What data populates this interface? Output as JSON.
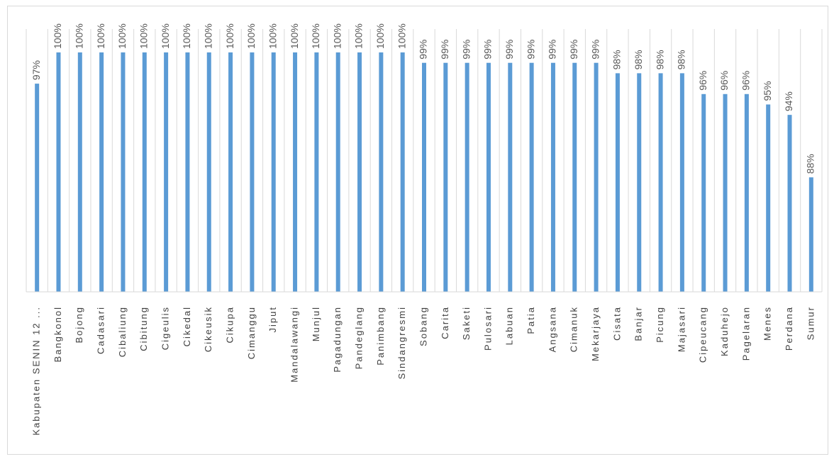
{
  "chart_data": {
    "type": "bar",
    "orientation": "vertical",
    "series": [
      {
        "values": [
          97,
          100,
          100,
          100,
          100,
          100,
          100,
          100,
          100,
          100,
          100,
          100,
          100,
          100,
          100,
          100,
          100,
          100,
          99,
          99,
          99,
          99,
          99,
          99,
          99,
          99,
          99,
          98,
          98,
          98,
          98,
          96,
          96,
          96,
          95,
          94,
          88
        ]
      }
    ],
    "categories": [
      "Kabupaten SENIN 12 ...",
      "Bangkonol",
      "Bojong",
      "Cadasari",
      "Cibaliung",
      "Cibitung",
      "Cigeulis",
      "Cikedal",
      "Cikeusik",
      "Cikupa",
      "Cimanggu",
      "Jiput",
      "Mandalawangi",
      "Munjul",
      "Pagadungan",
      "Pandeglang",
      "Panimbang",
      "Sindangresmi",
      "Sobang",
      "Carita",
      "Saketi",
      "Pulosari",
      "Labuan",
      "Patia",
      "Angsana",
      "Cimanuk",
      "Mekarjaya",
      "Cisata",
      "Banjar",
      "Picung",
      "Majasari",
      "Cipeucang",
      "Kaduhejo",
      "Pagelaran",
      "Menes",
      "Perdana",
      "Sumur"
    ],
    "data_labels": [
      "97%",
      "100%",
      "100%",
      "100%",
      "100%",
      "100%",
      "100%",
      "100%",
      "100%",
      "100%",
      "100%",
      "100%",
      "100%",
      "100%",
      "100%",
      "100%",
      "100%",
      "100%",
      "99%",
      "99%",
      "99%",
      "99%",
      "99%",
      "99%",
      "99%",
      "99%",
      "99%",
      "98%",
      "98%",
      "98%",
      "98%",
      "96%",
      "96%",
      "96%",
      "95%",
      "94%",
      "88%"
    ],
    "bar_color": "#5b9bd5",
    "label_color": "#595959",
    "ylim": [
      77,
      100
    ],
    "grid": "vertical",
    "legend": "none"
  }
}
